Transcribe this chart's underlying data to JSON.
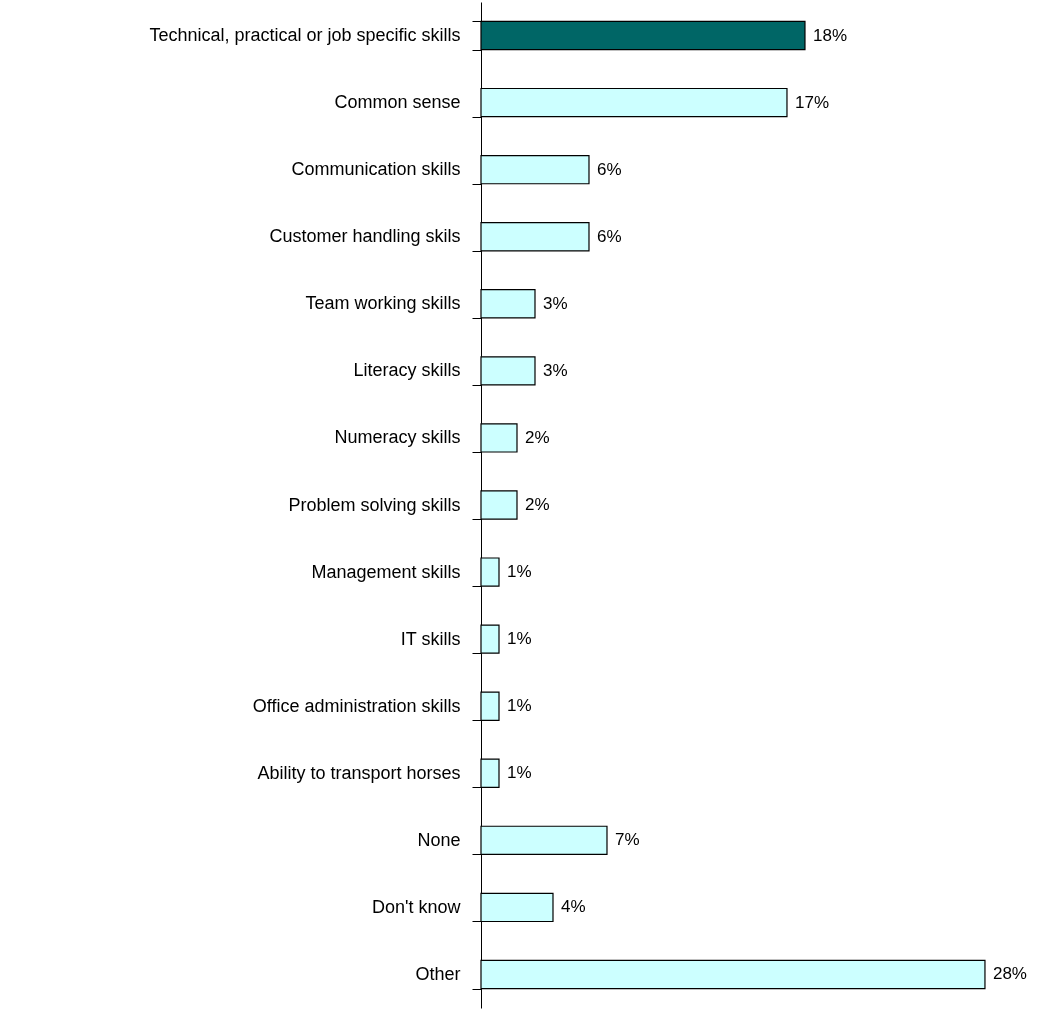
{
  "chart_data": {
    "type": "bar",
    "orientation": "horizontal",
    "categories": [
      "Technical, practical or job specific skills",
      "Common sense",
      "Communication skills",
      "Customer handling skils",
      "Team working skills",
      "Literacy skills",
      "Numeracy skills",
      "Problem solving skills",
      "Management skills",
      "IT skills",
      "Office administration skills",
      "Ability to transport horses",
      "None",
      "Don't know",
      "Other"
    ],
    "values": [
      18,
      17,
      6,
      6,
      3,
      3,
      2,
      2,
      1,
      1,
      1,
      1,
      7,
      4,
      28
    ],
    "value_labels": [
      "18%",
      "17%",
      "6%",
      "6%",
      "3%",
      "3%",
      "2%",
      "2%",
      "1%",
      "1%",
      "1%",
      "1%",
      "7%",
      "4%",
      "28%"
    ],
    "colors": [
      "#006666",
      "#ccffff",
      "#ccffff",
      "#ccffff",
      "#ccffff",
      "#ccffff",
      "#ccffff",
      "#ccffff",
      "#ccffff",
      "#ccffff",
      "#ccffff",
      "#ccffff",
      "#ccffff",
      "#ccffff",
      "#ccffff"
    ]
  }
}
